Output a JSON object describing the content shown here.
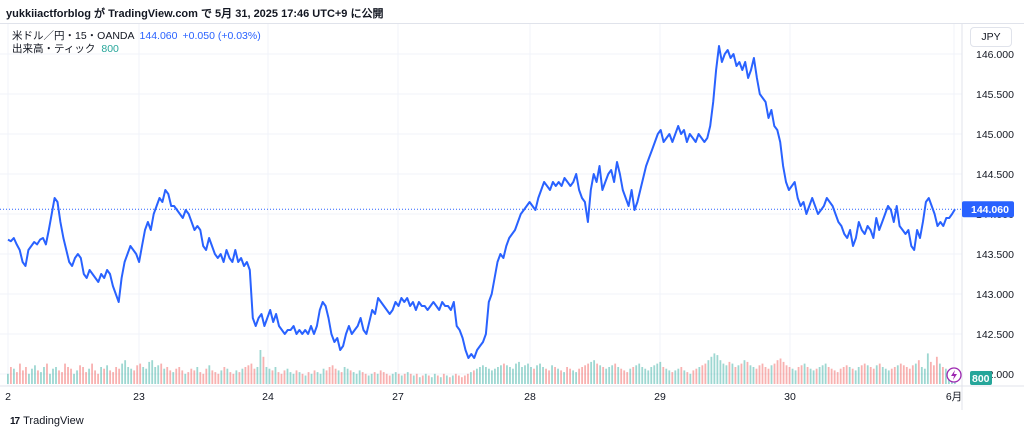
{
  "header": {
    "text": "yukkiiactforblog が TradingView.com で 5月 31, 2025 17:46 UTC+9 に公開"
  },
  "legend": {
    "symbol": "米ドル／円・15・OANDA",
    "price": "144.060",
    "change": "+0.050 (+0.03%)",
    "volume_label": "出来高・ティック",
    "volume_value": "800"
  },
  "currency_button": "JPY",
  "footer": {
    "logo_text": "TradingView",
    "logo_mark": "17"
  },
  "colors": {
    "line": "#2962ff",
    "up_volume": "#26a69a",
    "down_volume": "#ef5350",
    "grid": "#f0f3fa",
    "last_price_tag": "#2962ff",
    "volume_tag": "#26a69a"
  },
  "icons": {
    "lightning": "lightning-icon"
  },
  "chart_data": {
    "type": "line",
    "series": [
      {
        "name": "米ドル／円",
        "values": [
          143.68,
          143.66,
          143.7,
          143.62,
          143.55,
          143.4,
          143.35,
          143.55,
          143.6,
          143.65,
          143.62,
          143.68,
          143.7,
          143.62,
          143.8,
          144.0,
          144.2,
          144.15,
          143.9,
          143.7,
          143.55,
          143.4,
          143.35,
          143.45,
          143.5,
          143.45,
          143.25,
          143.2,
          143.3,
          143.25,
          143.2,
          143.15,
          143.25,
          143.2,
          143.3,
          143.25,
          143.1,
          143.0,
          142.9,
          143.2,
          143.4,
          143.5,
          143.6,
          143.55,
          143.5,
          143.4,
          143.6,
          143.8,
          143.9,
          143.8,
          144.0,
          144.1,
          144.2,
          144.15,
          144.3,
          144.25,
          144.1,
          144.1,
          144.05,
          144.0,
          143.95,
          144.05,
          144.0,
          143.9,
          143.8,
          143.85,
          143.8,
          143.6,
          143.55,
          143.7,
          143.6,
          143.5,
          143.45,
          143.5,
          143.4,
          143.55,
          143.45,
          143.4,
          143.55,
          143.4,
          143.45,
          143.35,
          143.4,
          143.3,
          142.7,
          142.6,
          142.7,
          142.75,
          142.6,
          142.7,
          142.8,
          142.65,
          142.75,
          142.6,
          142.55,
          142.5,
          142.55,
          142.55,
          142.6,
          142.5,
          142.55,
          142.5,
          142.55,
          142.5,
          142.6,
          142.5,
          142.6,
          142.8,
          142.9,
          142.85,
          142.7,
          142.5,
          142.4,
          142.45,
          142.3,
          142.35,
          142.5,
          142.6,
          142.5,
          142.55,
          142.6,
          142.7,
          142.55,
          142.5,
          142.65,
          142.8,
          142.75,
          142.95,
          142.9,
          142.85,
          142.8,
          142.75,
          142.8,
          142.9,
          142.85,
          142.95,
          142.9,
          142.95,
          142.85,
          142.9,
          142.8,
          142.9,
          142.85,
          142.85,
          142.8,
          142.85,
          142.9,
          142.85,
          142.8,
          142.9,
          142.85,
          142.85,
          142.8,
          142.9,
          142.6,
          142.55,
          142.45,
          142.3,
          142.2,
          142.25,
          142.2,
          142.3,
          142.35,
          142.4,
          142.5,
          142.9,
          143.0,
          143.2,
          143.4,
          143.5,
          143.45,
          143.6,
          143.7,
          143.75,
          143.8,
          143.9,
          144.0,
          144.05,
          144.1,
          144.15,
          144.1,
          144.05,
          144.2,
          144.3,
          144.4,
          144.35,
          144.3,
          144.4,
          144.35,
          144.4,
          144.35,
          144.45,
          144.4,
          144.35,
          144.4,
          144.5,
          144.3,
          144.2,
          144.15,
          143.9,
          144.3,
          144.5,
          144.4,
          144.6,
          144.3,
          144.4,
          144.5,
          144.55,
          144.4,
          144.65,
          144.5,
          144.3,
          144.2,
          144.1,
          144.3,
          144.05,
          144.15,
          144.3,
          144.45,
          144.6,
          144.7,
          144.8,
          144.9,
          145.0,
          145.05,
          144.9,
          144.95,
          145.0,
          144.9,
          145.0,
          145.1,
          145.0,
          145.05,
          144.9,
          145.0,
          144.95,
          144.9,
          145.0,
          144.95,
          144.9,
          144.95,
          145.1,
          145.4,
          145.8,
          146.1,
          145.9,
          146.0,
          146.05,
          145.95,
          146.0,
          145.85,
          145.9,
          145.8,
          145.9,
          145.7,
          145.8,
          145.95,
          145.7,
          145.5,
          145.45,
          145.4,
          145.2,
          145.3,
          145.1,
          145.05,
          144.9,
          144.6,
          144.4,
          144.3,
          144.35,
          144.4,
          144.2,
          144.1,
          144.15,
          144.0,
          144.1,
          144.2,
          144.1,
          144.0,
          144.05,
          144.1,
          144.2,
          144.15,
          144.1,
          144.0,
          143.9,
          143.85,
          143.75,
          143.7,
          143.8,
          143.6,
          143.7,
          143.9,
          143.8,
          143.75,
          143.85,
          143.8,
          143.7,
          143.95,
          143.8,
          143.9,
          144.0,
          144.1,
          144.05,
          143.9,
          144.1,
          143.85,
          143.8,
          143.75,
          143.8,
          143.6,
          143.55,
          143.8,
          143.7,
          143.9,
          144.15,
          144.2,
          144.1,
          144.0,
          143.85,
          143.9,
          143.85,
          143.95,
          143.95,
          144.0,
          144.06
        ]
      }
    ],
    "x_ticks": [
      "2",
      "23",
      "24",
      "27",
      "28",
      "29",
      "30",
      "6月"
    ],
    "y_ticks": [
      "146.000",
      "145.500",
      "145.000",
      "144.500",
      "144.000",
      "143.500",
      "143.000",
      "142.500",
      "142.000"
    ],
    "ylim": [
      141.85,
      146.3
    ],
    "last_price_label": "144.060",
    "volume_series": [
      0.3,
      0.5,
      0.45,
      0.35,
      0.6,
      0.4,
      0.5,
      0.3,
      0.45,
      0.55,
      0.4,
      0.35,
      0.5,
      0.6,
      0.3,
      0.45,
      0.5,
      0.4,
      0.35,
      0.6,
      0.5,
      0.45,
      0.3,
      0.4,
      0.55,
      0.5,
      0.35,
      0.45,
      0.6,
      0.4,
      0.3,
      0.5,
      0.45,
      0.55,
      0.4,
      0.35,
      0.5,
      0.45,
      0.6,
      0.7,
      0.5,
      0.45,
      0.4,
      0.55,
      0.6,
      0.5,
      0.45,
      0.65,
      0.7,
      0.5,
      0.55,
      0.6,
      0.45,
      0.5,
      0.4,
      0.35,
      0.45,
      0.5,
      0.4,
      0.3,
      0.35,
      0.45,
      0.4,
      0.5,
      0.35,
      0.3,
      0.45,
      0.55,
      0.4,
      0.35,
      0.3,
      0.4,
      0.5,
      0.45,
      0.35,
      0.3,
      0.4,
      0.35,
      0.45,
      0.5,
      0.55,
      0.6,
      0.45,
      0.5,
      1.0,
      0.8,
      0.5,
      0.45,
      0.4,
      0.5,
      0.35,
      0.3,
      0.4,
      0.45,
      0.35,
      0.3,
      0.4,
      0.35,
      0.3,
      0.25,
      0.35,
      0.3,
      0.4,
      0.35,
      0.3,
      0.45,
      0.4,
      0.5,
      0.55,
      0.45,
      0.4,
      0.35,
      0.5,
      0.45,
      0.4,
      0.35,
      0.3,
      0.4,
      0.35,
      0.3,
      0.25,
      0.3,
      0.35,
      0.3,
      0.4,
      0.35,
      0.3,
      0.25,
      0.3,
      0.35,
      0.3,
      0.25,
      0.3,
      0.35,
      0.3,
      0.25,
      0.3,
      0.2,
      0.25,
      0.3,
      0.25,
      0.2,
      0.3,
      0.25,
      0.2,
      0.3,
      0.25,
      0.2,
      0.25,
      0.3,
      0.25,
      0.2,
      0.25,
      0.3,
      0.35,
      0.4,
      0.45,
      0.5,
      0.55,
      0.5,
      0.45,
      0.4,
      0.45,
      0.5,
      0.55,
      0.6,
      0.55,
      0.5,
      0.45,
      0.6,
      0.65,
      0.5,
      0.55,
      0.6,
      0.5,
      0.45,
      0.55,
      0.6,
      0.5,
      0.45,
      0.4,
      0.55,
      0.5,
      0.45,
      0.4,
      0.35,
      0.5,
      0.45,
      0.4,
      0.35,
      0.45,
      0.5,
      0.55,
      0.6,
      0.65,
      0.7,
      0.6,
      0.55,
      0.5,
      0.45,
      0.5,
      0.55,
      0.6,
      0.5,
      0.45,
      0.4,
      0.35,
      0.45,
      0.5,
      0.55,
      0.6,
      0.5,
      0.45,
      0.4,
      0.5,
      0.55,
      0.6,
      0.65,
      0.5,
      0.45,
      0.4,
      0.35,
      0.4,
      0.45,
      0.5,
      0.4,
      0.35,
      0.3,
      0.4,
      0.45,
      0.5,
      0.55,
      0.6,
      0.7,
      0.8,
      0.9,
      0.85,
      0.7,
      0.6,
      0.55,
      0.65,
      0.6,
      0.5,
      0.55,
      0.6,
      0.7,
      0.65,
      0.55,
      0.5,
      0.45,
      0.55,
      0.6,
      0.5,
      0.45,
      0.55,
      0.6,
      0.7,
      0.75,
      0.65,
      0.55,
      0.5,
      0.45,
      0.4,
      0.5,
      0.55,
      0.6,
      0.5,
      0.45,
      0.4,
      0.45,
      0.5,
      0.55,
      0.6,
      0.5,
      0.45,
      0.4,
      0.35,
      0.45,
      0.5,
      0.55,
      0.5,
      0.45,
      0.4,
      0.5,
      0.55,
      0.6,
      0.55,
      0.5,
      0.45,
      0.55,
      0.6,
      0.5,
      0.45,
      0.4,
      0.45,
      0.5,
      0.55,
      0.6,
      0.55,
      0.5,
      0.45,
      0.55,
      0.6,
      0.7,
      0.5,
      0.45,
      0.9,
      0.65,
      0.55,
      0.8,
      0.6,
      0.5,
      0.45,
      0.4,
      0.35,
      0.3
    ],
    "volume_label": "800",
    "grid": true
  }
}
